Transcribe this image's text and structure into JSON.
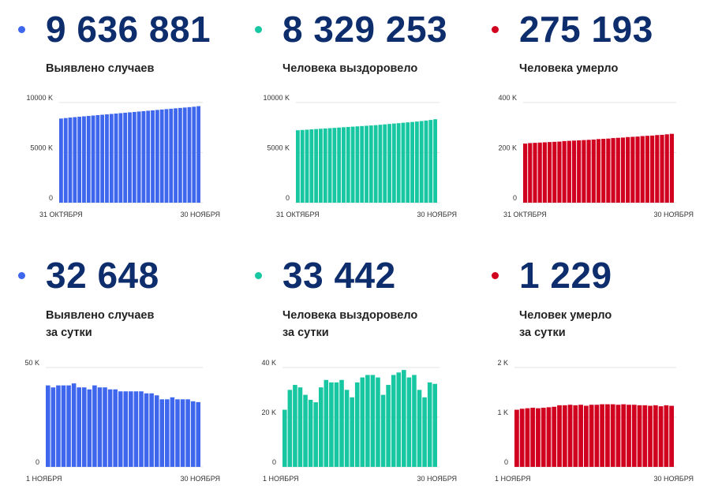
{
  "panels": [
    {
      "total": "9 636 881",
      "label1": "Выявлено случаев",
      "label2": "",
      "color": "#3e67ee",
      "chart_data": {
        "type": "bar",
        "x_start_label": "31 ОКТЯБРЯ",
        "x_end_label": "30 НОЯБРЯ",
        "yticks": [
          0,
          5000,
          10000
        ],
        "ytick_labels": [
          "0",
          "5000 K",
          "10000 K"
        ],
        "ylim": [
          0,
          10000
        ],
        "values": [
          8400,
          8450,
          8500,
          8540,
          8580,
          8620,
          8660,
          8700,
          8740,
          8780,
          8820,
          8860,
          8900,
          8940,
          8980,
          9020,
          9060,
          9100,
          9140,
          9180,
          9220,
          9260,
          9300,
          9340,
          9380,
          9420,
          9460,
          9500,
          9540,
          9580,
          9637
        ]
      }
    },
    {
      "total": "8 329 253",
      "label1": "Человека выздоровело",
      "label2": "",
      "color": "#17c7a2",
      "chart_data": {
        "type": "bar",
        "x_start_label": "31 ОКТЯБРЯ",
        "x_end_label": "30 НОЯБРЯ",
        "yticks": [
          0,
          5000,
          10000
        ],
        "ytick_labels": [
          "0",
          "5000 K",
          "10000 K"
        ],
        "ylim": [
          0,
          10000
        ],
        "values": [
          7230,
          7260,
          7290,
          7320,
          7350,
          7380,
          7410,
          7440,
          7470,
          7500,
          7530,
          7560,
          7590,
          7620,
          7650,
          7680,
          7710,
          7740,
          7780,
          7820,
          7860,
          7900,
          7940,
          7980,
          8020,
          8060,
          8100,
          8150,
          8200,
          8260,
          8329
        ]
      }
    },
    {
      "total": "275 193",
      "label1": "Человека умерло",
      "label2": "",
      "color": "#d1001f",
      "chart_data": {
        "type": "bar",
        "x_start_label": "31 ОКТЯБРЯ",
        "x_end_label": "30 НОЯБРЯ",
        "yticks": [
          0,
          200,
          400
        ],
        "ytick_labels": [
          "0",
          "200 K",
          "400 K"
        ],
        "ylim": [
          0,
          400
        ],
        "values": [
          236,
          238,
          239,
          240,
          241,
          242,
          243,
          244,
          246,
          247,
          248,
          249,
          250,
          251,
          252,
          254,
          255,
          256,
          258,
          259,
          260,
          262,
          263,
          264,
          266,
          267,
          268,
          270,
          271,
          273,
          275
        ]
      }
    },
    {
      "total": "32 648",
      "label1": "Выявлено случаев",
      "label2": "за сутки",
      "color": "#3e67ee",
      "chart_data": {
        "type": "bar",
        "x_start_label": "1 НОЯБРЯ",
        "x_end_label": "30 НОЯБРЯ",
        "yticks": [
          0,
          50
        ],
        "ytick_labels": [
          "0",
          "50 K"
        ],
        "ylim": [
          0,
          50
        ],
        "values": [
          41,
          40,
          41,
          41,
          41,
          42,
          40,
          40,
          39,
          41,
          40,
          40,
          39,
          39,
          38,
          38,
          38,
          38,
          38,
          37,
          37,
          36,
          34,
          34,
          35,
          34,
          34,
          34,
          33,
          32.6
        ]
      }
    },
    {
      "total": "33 442",
      "label1": "Человека выздоровело",
      "label2": "за сутки",
      "color": "#17c7a2",
      "chart_data": {
        "type": "bar",
        "x_start_label": "1 НОЯБРЯ",
        "x_end_label": "30 НОЯБРЯ",
        "yticks": [
          0,
          20,
          40
        ],
        "ytick_labels": [
          "0",
          "20 K",
          "40 K"
        ],
        "ylim": [
          0,
          40
        ],
        "values": [
          23,
          31,
          33,
          32,
          29,
          27,
          26,
          32,
          35,
          34,
          34,
          35,
          31,
          28,
          34,
          36,
          37,
          37,
          36,
          29,
          33,
          37,
          38,
          39,
          36,
          37,
          31,
          28,
          34,
          33.4
        ]
      }
    },
    {
      "total": "1 229",
      "label1": "Человек умерло",
      "label2": "за сутки",
      "color": "#d1001f",
      "chart_data": {
        "type": "bar",
        "x_start_label": "1 НОЯБРЯ",
        "x_end_label": "30 НОЯБРЯ",
        "yticks": [
          0,
          1000,
          2000
        ],
        "ytick_labels": [
          "0",
          "1 K",
          "2 K"
        ],
        "ylim": [
          0,
          2000
        ],
        "values": [
          1150,
          1170,
          1180,
          1190,
          1180,
          1190,
          1200,
          1210,
          1240,
          1240,
          1250,
          1240,
          1250,
          1230,
          1250,
          1250,
          1260,
          1260,
          1260,
          1250,
          1260,
          1250,
          1250,
          1240,
          1240,
          1230,
          1240,
          1220,
          1240,
          1229
        ]
      }
    }
  ]
}
